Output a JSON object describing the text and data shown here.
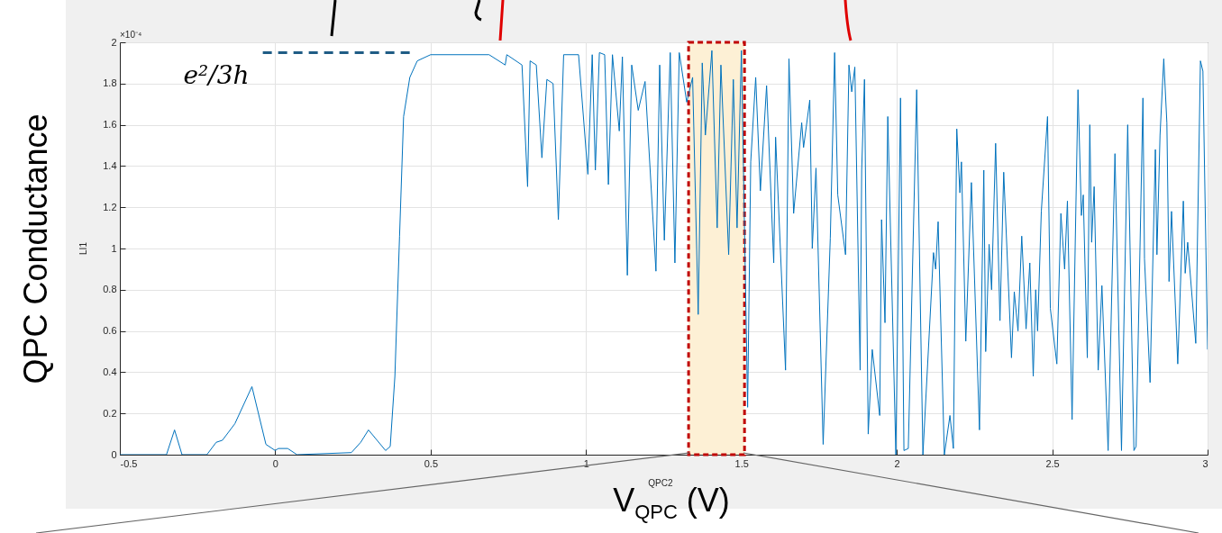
{
  "chart_data": {
    "type": "line",
    "xlabel": "V$_{QPC}$ (V)",
    "ylabel": "QPC Conductance",
    "annotations": [
      "×10⁻⁴",
      "LI1",
      "QPC2",
      "e²/3h"
    ],
    "series": [
      {
        "color": "#0072bd",
        "x": [
          -0.5,
          -0.35,
          -0.324,
          -0.3,
          -0.22,
          -0.19,
          -0.17,
          -0.13,
          -0.075,
          -0.03,
          0.0,
          0.01,
          0.04,
          0.07,
          0.245,
          0.275,
          0.3,
          0.355,
          0.37,
          0.385,
          0.4,
          0.413,
          0.433,
          0.457,
          0.5,
          0.688,
          0.74,
          0.745,
          0.794,
          0.812,
          0.82,
          0.84,
          0.858,
          0.874,
          0.894,
          0.911,
          0.928,
          0.976,
          1.006,
          1.02,
          1.03,
          1.043,
          1.06,
          1.072,
          1.085,
          1.107,
          1.117,
          1.133,
          1.147,
          1.168,
          1.19,
          1.225,
          1.237,
          1.252,
          1.271,
          1.286,
          1.3,
          1.324,
          1.343,
          1.361,
          1.374,
          1.384,
          1.405,
          1.422,
          1.434,
          1.459,
          1.474,
          1.486,
          1.5,
          1.52,
          1.53,
          1.546,
          1.561,
          1.581,
          1.604,
          1.61,
          1.642,
          1.653,
          1.668,
          1.694,
          1.7,
          1.72,
          1.728,
          1.74,
          1.763,
          1.786,
          1.8,
          1.81,
          1.835,
          1.846,
          1.855,
          1.865,
          1.882,
          1.887,
          1.896,
          1.908,
          1.921,
          1.945,
          1.951,
          1.962,
          1.971,
          1.997,
          2.012,
          2.023,
          2.037,
          2.064,
          2.084,
          2.118,
          2.125,
          2.133,
          2.153,
          2.171,
          2.182,
          2.193,
          2.203,
          2.208,
          2.222,
          2.24,
          2.266,
          2.28,
          2.286,
          2.297,
          2.305,
          2.318,
          2.332,
          2.344,
          2.369,
          2.378,
          2.39,
          2.402,
          2.416,
          2.428,
          2.439,
          2.447,
          2.453,
          2.465,
          2.485,
          2.494,
          2.515,
          2.528,
          2.54,
          2.549,
          2.564,
          2.583,
          2.594,
          2.6,
          2.613,
          2.621,
          2.627,
          2.635,
          2.648,
          2.66,
          2.68,
          2.702,
          2.723,
          2.743,
          2.763,
          2.77,
          2.792,
          2.797,
          2.815,
          2.832,
          2.837,
          2.847,
          2.859,
          2.869,
          2.876,
          2.884,
          2.904,
          2.922,
          2.928,
          2.936,
          2.962,
          2.977,
          2.985,
          3.0
        ],
        "values": [
          0,
          0,
          0.12,
          0,
          0,
          0.06,
          0.07,
          0.15,
          0.33,
          0.05,
          0.02,
          0.03,
          0.03,
          0,
          0.01,
          0.06,
          0.12,
          0.02,
          0.04,
          0.38,
          1.06,
          1.64,
          1.83,
          1.91,
          1.94,
          1.94,
          1.89,
          1.94,
          1.89,
          1.3,
          1.91,
          1.89,
          1.44,
          1.82,
          1.8,
          1.14,
          1.94,
          1.94,
          1.36,
          1.94,
          1.38,
          1.95,
          1.94,
          1.31,
          1.94,
          1.57,
          1.93,
          0.87,
          1.89,
          1.67,
          1.81,
          0.89,
          1.89,
          1.04,
          1.95,
          0.93,
          1.95,
          1.71,
          1.83,
          0.68,
          1.9,
          1.55,
          1.96,
          1.1,
          1.89,
          0.97,
          1.82,
          1.1,
          1.96,
          0.23,
          1.42,
          1.83,
          1.28,
          1.79,
          0.93,
          1.54,
          0.41,
          1.92,
          1.17,
          1.61,
          1.49,
          1.72,
          1.0,
          1.39,
          0.05,
          1.05,
          1.95,
          1.26,
          0.97,
          1.89,
          1.76,
          1.88,
          0.41,
          1.38,
          1.82,
          0.1,
          0.51,
          0.19,
          1.14,
          0.64,
          1.64,
          0,
          1.73,
          0.02,
          0.03,
          1.77,
          0,
          0.98,
          0.9,
          1.13,
          0,
          0.19,
          0.03,
          1.58,
          1.27,
          1.42,
          0.55,
          1.32,
          0.12,
          1.38,
          0.5,
          1.02,
          0.8,
          1.51,
          0.65,
          1.37,
          0.47,
          0.79,
          0.6,
          1.06,
          0.61,
          0.93,
          0.38,
          0.8,
          0.6,
          1.18,
          1.64,
          0.71,
          0.44,
          1.17,
          0.9,
          1.23,
          0.17,
          1.77,
          1.16,
          1.26,
          0.47,
          1.6,
          1.03,
          1.3,
          0.41,
          0.82,
          0.02,
          1.46,
          0.02,
          1.6,
          0.02,
          0.04,
          1.73,
          0.95,
          0.35,
          1.48,
          0.97,
          1.55,
          1.92,
          1.61,
          0.84,
          1.18,
          0.44,
          1.23,
          0.88,
          1.03,
          0.54,
          1.91,
          1.86,
          0.51
        ]
      },
      {
        "color": "#1f5c85",
        "line_style": "dashed",
        "x": [
          -0.04,
          0.44
        ],
        "values": [
          1.95,
          1.95
        ]
      }
    ],
    "bands": [
      {
        "axis": "x",
        "from": 1.33,
        "to": 1.51,
        "color": "#fdf0d5"
      }
    ],
    "xlim": [
      -0.5,
      3
    ],
    "xticks": [
      -0.5,
      0,
      0.5,
      1,
      1.5,
      2,
      2.5,
      3
    ],
    "ylim": [
      0,
      2
    ],
    "yticks": [
      0,
      0.2,
      0.4,
      0.6,
      0.8,
      1,
      1.2,
      1.4,
      1.6,
      1.8,
      2
    ],
    "grid": true
  }
}
